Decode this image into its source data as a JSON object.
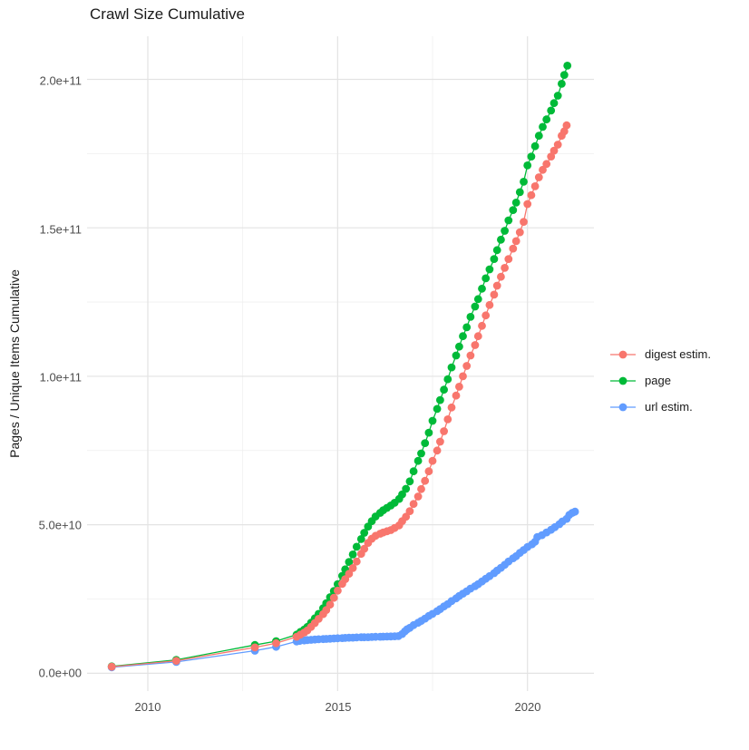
{
  "title": "Crawl Size Cumulative",
  "axes": {
    "y_title": "Pages / Unique Items Cumulative",
    "x_tick_labels": [
      "2010",
      "2015",
      "2020"
    ],
    "y_tick_labels": [
      "0.0e+00",
      "5.0e+10",
      "1.0e+11",
      "1.5e+11",
      "2.0e+11"
    ]
  },
  "colors": {
    "background": "#ffffff",
    "grid_major": "#e3e3e3",
    "grid_minor": "#efefef",
    "tick_text": "#4d4d4d",
    "title_text": "#1a1a1a",
    "digest": "#f8766d",
    "page": "#00ba38",
    "url": "#619cff"
  },
  "legend": {
    "position": "right",
    "items": [
      {
        "label": "digest estim.",
        "color": "#f8766d"
      },
      {
        "label": "page",
        "color": "#00ba38"
      },
      {
        "label": "url estim.",
        "color": "#619cff"
      }
    ]
  },
  "chart_data": {
    "type": "line",
    "title": "Crawl Size Cumulative",
    "xlabel": "",
    "ylabel": "Pages / Unique Items Cumulative",
    "values_unit": "1e9 pages (billions); y axis shown in scientific notation",
    "x_domain": [
      2008.4,
      2021.75
    ],
    "y_domain": [
      -6,
      214.5
    ],
    "x_ticks": [
      {
        "value": 2010,
        "label": "2010"
      },
      {
        "value": 2015,
        "label": "2015"
      },
      {
        "value": 2020,
        "label": "2020"
      }
    ],
    "x_minor_ticks": [
      2012.5,
      2017.5
    ],
    "y_ticks": [
      {
        "value": 0,
        "label": "0.0e+00"
      },
      {
        "value": 50,
        "label": "5.0e+10"
      },
      {
        "value": 100,
        "label": "1.0e+11"
      },
      {
        "value": 150,
        "label": "1.5e+11"
      },
      {
        "value": 200,
        "label": "2.0e+11"
      }
    ],
    "y_minor_ticks": [
      25,
      75,
      125,
      175
    ],
    "grid": true,
    "legend_position": "right",
    "marker": "point",
    "series": [
      {
        "name": "page",
        "color": "#00ba38",
        "points": [
          [
            2009.05,
            2.3
          ],
          [
            2010.75,
            4.5
          ],
          [
            2012.82,
            9.5
          ],
          [
            2013.38,
            10.8
          ],
          [
            2013.92,
            13.0
          ],
          [
            2014.02,
            13.9
          ],
          [
            2014.12,
            14.7
          ],
          [
            2014.2,
            15.6
          ],
          [
            2014.3,
            17.0
          ],
          [
            2014.4,
            18.5
          ],
          [
            2014.5,
            20.0
          ],
          [
            2014.62,
            21.9
          ],
          [
            2014.7,
            23.6
          ],
          [
            2014.8,
            25.6
          ],
          [
            2014.9,
            27.7
          ],
          [
            2015.0,
            30.0
          ],
          [
            2015.12,
            32.8
          ],
          [
            2015.2,
            35.0
          ],
          [
            2015.3,
            37.5
          ],
          [
            2015.4,
            40.0
          ],
          [
            2015.5,
            42.6
          ],
          [
            2015.62,
            45.2
          ],
          [
            2015.7,
            47.3
          ],
          [
            2015.8,
            49.4
          ],
          [
            2015.9,
            51.2
          ],
          [
            2016.0,
            52.8
          ],
          [
            2016.12,
            54.0
          ],
          [
            2016.2,
            54.9
          ],
          [
            2016.3,
            55.7
          ],
          [
            2016.4,
            56.5
          ],
          [
            2016.5,
            57.4
          ],
          [
            2016.62,
            58.7
          ],
          [
            2016.7,
            60.2
          ],
          [
            2016.8,
            62.1
          ],
          [
            2016.9,
            64.6
          ],
          [
            2017.0,
            68.0
          ],
          [
            2017.12,
            71.5
          ],
          [
            2017.2,
            74.0
          ],
          [
            2017.3,
            77.5
          ],
          [
            2017.4,
            81.0
          ],
          [
            2017.5,
            85.0
          ],
          [
            2017.62,
            89.0
          ],
          [
            2017.7,
            92.0
          ],
          [
            2017.8,
            95.5
          ],
          [
            2017.9,
            99.0
          ],
          [
            2018.0,
            103.0
          ],
          [
            2018.12,
            107.0
          ],
          [
            2018.2,
            110.0
          ],
          [
            2018.3,
            113.5
          ],
          [
            2018.4,
            116.5
          ],
          [
            2018.5,
            120.0
          ],
          [
            2018.62,
            123.5
          ],
          [
            2018.7,
            126.0
          ],
          [
            2018.8,
            129.5
          ],
          [
            2018.9,
            133.0
          ],
          [
            2019.0,
            136.0
          ],
          [
            2019.12,
            139.5
          ],
          [
            2019.2,
            142.5
          ],
          [
            2019.3,
            146.0
          ],
          [
            2019.4,
            149.0
          ],
          [
            2019.5,
            152.5
          ],
          [
            2019.62,
            156.0
          ],
          [
            2019.7,
            158.5
          ],
          [
            2019.8,
            162.0
          ],
          [
            2019.9,
            165.5
          ],
          [
            2020.0,
            171.0
          ],
          [
            2020.1,
            174.0
          ],
          [
            2020.2,
            177.5
          ],
          [
            2020.3,
            181.0
          ],
          [
            2020.4,
            184.0
          ],
          [
            2020.5,
            186.5
          ],
          [
            2020.62,
            189.5
          ],
          [
            2020.7,
            192.0
          ],
          [
            2020.8,
            194.5
          ],
          [
            2020.9,
            198.5
          ],
          [
            2020.97,
            201.5
          ],
          [
            2021.05,
            204.6
          ]
        ]
      },
      {
        "name": "url estim.",
        "color": "#619cff",
        "points": [
          [
            2009.05,
            2.0
          ],
          [
            2010.75,
            3.8
          ],
          [
            2012.82,
            7.6
          ],
          [
            2013.38,
            8.9
          ],
          [
            2013.92,
            10.7
          ],
          [
            2014.0,
            10.9
          ],
          [
            2014.12,
            11.05
          ],
          [
            2014.2,
            11.15
          ],
          [
            2014.3,
            11.25
          ],
          [
            2014.4,
            11.35
          ],
          [
            2014.5,
            11.45
          ],
          [
            2014.62,
            11.5
          ],
          [
            2014.7,
            11.55
          ],
          [
            2014.8,
            11.62
          ],
          [
            2014.9,
            11.7
          ],
          [
            2015.0,
            11.78
          ],
          [
            2015.12,
            11.85
          ],
          [
            2015.2,
            11.9
          ],
          [
            2015.3,
            11.95
          ],
          [
            2015.4,
            12.0
          ],
          [
            2015.5,
            12.05
          ],
          [
            2015.62,
            12.1
          ],
          [
            2015.7,
            12.12
          ],
          [
            2015.8,
            12.15
          ],
          [
            2015.9,
            12.2
          ],
          [
            2016.0,
            12.25
          ],
          [
            2016.12,
            12.3
          ],
          [
            2016.2,
            12.32
          ],
          [
            2016.3,
            12.35
          ],
          [
            2016.4,
            12.4
          ],
          [
            2016.5,
            12.45
          ],
          [
            2016.6,
            12.5
          ],
          [
            2016.7,
            13.2
          ],
          [
            2016.77,
            14.1
          ],
          [
            2016.83,
            14.8
          ],
          [
            2016.9,
            15.3
          ],
          [
            2017.0,
            16.2
          ],
          [
            2017.12,
            17.0
          ],
          [
            2017.2,
            17.6
          ],
          [
            2017.3,
            18.4
          ],
          [
            2017.4,
            19.3
          ],
          [
            2017.5,
            20.0
          ],
          [
            2017.62,
            20.9
          ],
          [
            2017.7,
            21.6
          ],
          [
            2017.8,
            22.5
          ],
          [
            2017.9,
            23.3
          ],
          [
            2018.0,
            24.3
          ],
          [
            2018.12,
            25.2
          ],
          [
            2018.2,
            26.0
          ],
          [
            2018.3,
            26.8
          ],
          [
            2018.4,
            27.6
          ],
          [
            2018.5,
            28.5
          ],
          [
            2018.62,
            29.3
          ],
          [
            2018.7,
            30.0
          ],
          [
            2018.8,
            30.9
          ],
          [
            2018.9,
            31.8
          ],
          [
            2019.0,
            32.7
          ],
          [
            2019.12,
            33.7
          ],
          [
            2019.2,
            34.6
          ],
          [
            2019.3,
            35.5
          ],
          [
            2019.4,
            36.5
          ],
          [
            2019.5,
            37.6
          ],
          [
            2019.62,
            38.7
          ],
          [
            2019.7,
            39.4
          ],
          [
            2019.8,
            40.5
          ],
          [
            2019.9,
            41.5
          ],
          [
            2020.0,
            42.5
          ],
          [
            2020.12,
            43.4
          ],
          [
            2020.2,
            44.3
          ],
          [
            2020.26,
            45.9
          ],
          [
            2020.38,
            46.5
          ],
          [
            2020.5,
            47.4
          ],
          [
            2020.62,
            48.3
          ],
          [
            2020.72,
            49.2
          ],
          [
            2020.84,
            50.2
          ],
          [
            2020.92,
            51.1
          ],
          [
            2021.03,
            52.0
          ],
          [
            2021.1,
            53.3
          ],
          [
            2021.18,
            54.0
          ],
          [
            2021.25,
            54.4
          ]
        ]
      },
      {
        "name": "digest estim.",
        "color": "#f8766d",
        "points": [
          [
            2009.05,
            2.2
          ],
          [
            2010.75,
            4.2
          ],
          [
            2012.82,
            8.7
          ],
          [
            2013.38,
            10.1
          ],
          [
            2013.92,
            12.3
          ],
          [
            2014.02,
            13.0
          ],
          [
            2014.12,
            13.7
          ],
          [
            2014.2,
            14.4
          ],
          [
            2014.3,
            15.6
          ],
          [
            2014.4,
            16.9
          ],
          [
            2014.5,
            18.3
          ],
          [
            2014.62,
            19.9
          ],
          [
            2014.7,
            21.3
          ],
          [
            2014.8,
            23.1
          ],
          [
            2014.9,
            25.4
          ],
          [
            2015.0,
            27.8
          ],
          [
            2015.12,
            30.1
          ],
          [
            2015.2,
            31.7
          ],
          [
            2015.3,
            33.5
          ],
          [
            2015.4,
            35.4
          ],
          [
            2015.5,
            37.6
          ],
          [
            2015.62,
            40.2
          ],
          [
            2015.7,
            41.9
          ],
          [
            2015.8,
            43.9
          ],
          [
            2015.9,
            45.3
          ],
          [
            2016.0,
            46.3
          ],
          [
            2016.12,
            47.0
          ],
          [
            2016.2,
            47.4
          ],
          [
            2016.3,
            47.8
          ],
          [
            2016.4,
            48.2
          ],
          [
            2016.5,
            48.9
          ],
          [
            2016.62,
            49.8
          ],
          [
            2016.7,
            51.2
          ],
          [
            2016.8,
            52.7
          ],
          [
            2016.9,
            54.6
          ],
          [
            2017.0,
            57.0
          ],
          [
            2017.12,
            59.5
          ],
          [
            2017.2,
            62.0
          ],
          [
            2017.3,
            64.8
          ],
          [
            2017.4,
            68.0
          ],
          [
            2017.5,
            71.5
          ],
          [
            2017.62,
            75.0
          ],
          [
            2017.7,
            78.0
          ],
          [
            2017.8,
            81.5
          ],
          [
            2017.9,
            85.5
          ],
          [
            2018.0,
            89.5
          ],
          [
            2018.12,
            93.5
          ],
          [
            2018.2,
            96.5
          ],
          [
            2018.3,
            100.0
          ],
          [
            2018.4,
            103.5
          ],
          [
            2018.5,
            107.0
          ],
          [
            2018.62,
            110.5
          ],
          [
            2018.7,
            113.5
          ],
          [
            2018.8,
            117.0
          ],
          [
            2018.9,
            120.5
          ],
          [
            2019.0,
            124.0
          ],
          [
            2019.12,
            127.5
          ],
          [
            2019.2,
            130.5
          ],
          [
            2019.3,
            133.5
          ],
          [
            2019.4,
            136.5
          ],
          [
            2019.5,
            139.5
          ],
          [
            2019.62,
            143.0
          ],
          [
            2019.7,
            145.5
          ],
          [
            2019.8,
            148.5
          ],
          [
            2019.9,
            152.0
          ],
          [
            2020.0,
            158.0
          ],
          [
            2020.1,
            161.0
          ],
          [
            2020.2,
            164.0
          ],
          [
            2020.3,
            167.0
          ],
          [
            2020.4,
            169.5
          ],
          [
            2020.5,
            171.5
          ],
          [
            2020.62,
            174.0
          ],
          [
            2020.7,
            176.0
          ],
          [
            2020.8,
            178.0
          ],
          [
            2020.9,
            181.0
          ],
          [
            2020.97,
            182.5
          ],
          [
            2021.03,
            184.5
          ]
        ]
      }
    ]
  }
}
